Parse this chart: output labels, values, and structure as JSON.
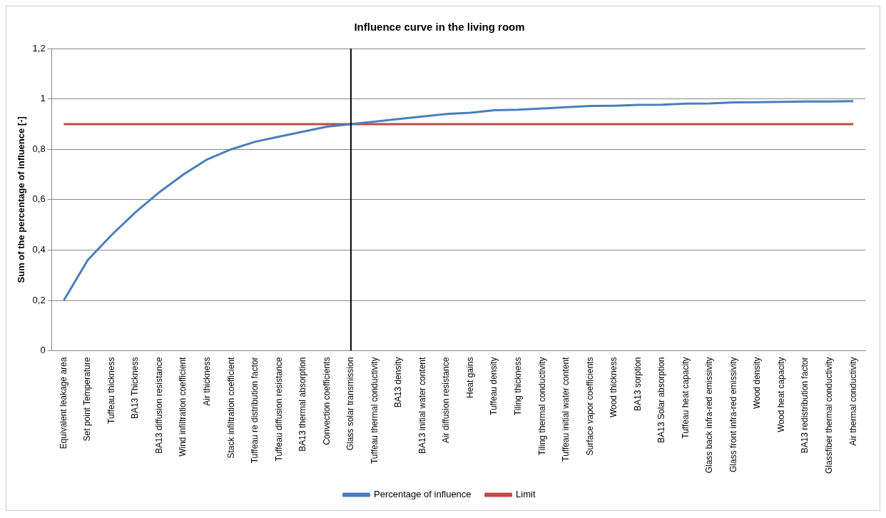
{
  "chart_data": {
    "type": "line",
    "title": "Influence curve in the living room",
    "ylabel": "Sum of the percentage of influence [-]",
    "categories": [
      "Equivalent leakage area",
      "Set point Temperature",
      "Tuffeau thickness",
      "BA13 Thickness",
      "BA13 diffusion resistance",
      "Wind infiltration coefficient",
      "Air thickness",
      "Stack infiltration coefficient",
      "Tuffeau re distribution factor",
      "Tuffeau diffusion resistance",
      "BA13 thermal absorption",
      "Convection coefficients",
      "Glass solar transmission",
      "Tuffeau thermal conductivity",
      "BA13 density",
      "BA13 initial water content",
      "Air diffusion resistance",
      "Heat gains",
      "Tuffeau density",
      "Tiling thickness",
      "Tiling thermal conductivity",
      "Tuffeau initial water content",
      "Surface vapor coefficients",
      "Wood thickness",
      "BA13 sorption",
      "BA13 Solar absorption",
      "Tuffeau heat capacity",
      "Glass back infra-red emissivity",
      "Glass front infra-red emissivity",
      "Wood density",
      "Wood heat capacity",
      "BA13 redistribution factor",
      "Glassfiber thermal conductivity",
      "Air thermal conductivity"
    ],
    "series": [
      {
        "name": "Percentage of influence",
        "color": "#4a7ebb",
        "values": [
          0.2,
          0.36,
          0.46,
          0.55,
          0.63,
          0.7,
          0.76,
          0.8,
          0.83,
          0.85,
          0.87,
          0.89,
          0.9,
          0.91,
          0.92,
          0.93,
          0.94,
          0.945,
          0.955,
          0.957,
          0.962,
          0.967,
          0.972,
          0.973,
          0.976,
          0.977,
          0.981,
          0.982,
          0.986,
          0.987,
          0.988,
          0.99,
          0.99,
          0.991
        ]
      },
      {
        "name": "Limit",
        "color": "#be4b48",
        "values": [
          0.9,
          0.9,
          0.9,
          0.9,
          0.9,
          0.9,
          0.9,
          0.9,
          0.9,
          0.9,
          0.9,
          0.9,
          0.9,
          0.9,
          0.9,
          0.9,
          0.9,
          0.9,
          0.9,
          0.9,
          0.9,
          0.9,
          0.9,
          0.9,
          0.9,
          0.9,
          0.9,
          0.9,
          0.9,
          0.9,
          0.9,
          0.9,
          0.9,
          0.9
        ]
      }
    ],
    "ylim": [
      0,
      1.2
    ],
    "yticks": [
      0,
      {
        "value": 0.2,
        "label": "0,2"
      },
      {
        "value": 0.4,
        "label": "0,4"
      },
      {
        "value": 0.6,
        "label": "0,6"
      },
      {
        "value": 0.8,
        "label": "0,8"
      },
      1,
      {
        "value": 1.2,
        "label": "1,2"
      }
    ],
    "ref_lines": [
      {
        "axis": "x",
        "value": "Glass solar transmission",
        "color": "#000000"
      }
    ],
    "grid": "y",
    "legend": "bottom",
    "marker": "none",
    "line_style": "solid"
  }
}
